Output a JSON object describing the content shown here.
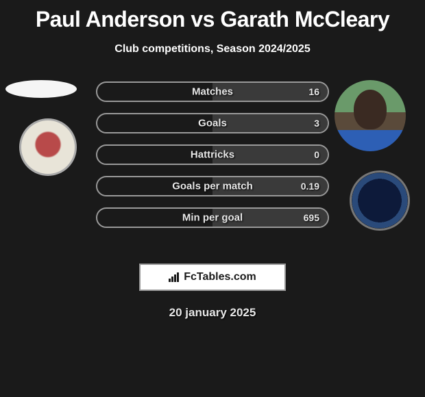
{
  "title": "Paul Anderson vs Garath McCleary",
  "subtitle": "Club competitions, Season 2024/2025",
  "date": "20 january 2025",
  "logo": {
    "text": "FcTables.com",
    "text_color": "#1a1a1a",
    "border_color": "#999999",
    "bg_color": "#ffffff"
  },
  "players": {
    "left": {
      "name": "Paul Anderson",
      "avatar_placeholder_color": "#f5f5f5",
      "club_badge_colors": [
        "#b84a4a",
        "#e8e4d8"
      ]
    },
    "right": {
      "name": "Garath McCleary",
      "avatar_colors": [
        "#6a9a6a",
        "#5a4a3a",
        "#2d5fb5"
      ],
      "club_badge_colors": [
        "#0d1a3a",
        "#55c3e8"
      ]
    }
  },
  "comparison": {
    "type": "h2h-bars",
    "bar_bg": "#1a1a1a",
    "bar_border": "#9a9a9a",
    "fill_color": "#3a3a3a",
    "label_color": "#e8e8e8",
    "label_fontsize": 15,
    "value_fontsize": 14,
    "rows": [
      {
        "label": "Matches",
        "left": "",
        "right": "16",
        "left_pct": 0,
        "right_pct": 50
      },
      {
        "label": "Goals",
        "left": "",
        "right": "3",
        "left_pct": 0,
        "right_pct": 50
      },
      {
        "label": "Hattricks",
        "left": "",
        "right": "0",
        "left_pct": 0,
        "right_pct": 50
      },
      {
        "label": "Goals per match",
        "left": "",
        "right": "0.19",
        "left_pct": 0,
        "right_pct": 50
      },
      {
        "label": "Min per goal",
        "left": "",
        "right": "695",
        "left_pct": 0,
        "right_pct": 50
      }
    ]
  },
  "colors": {
    "page_bg": "#1a1a1a",
    "text": "#ffffff"
  }
}
